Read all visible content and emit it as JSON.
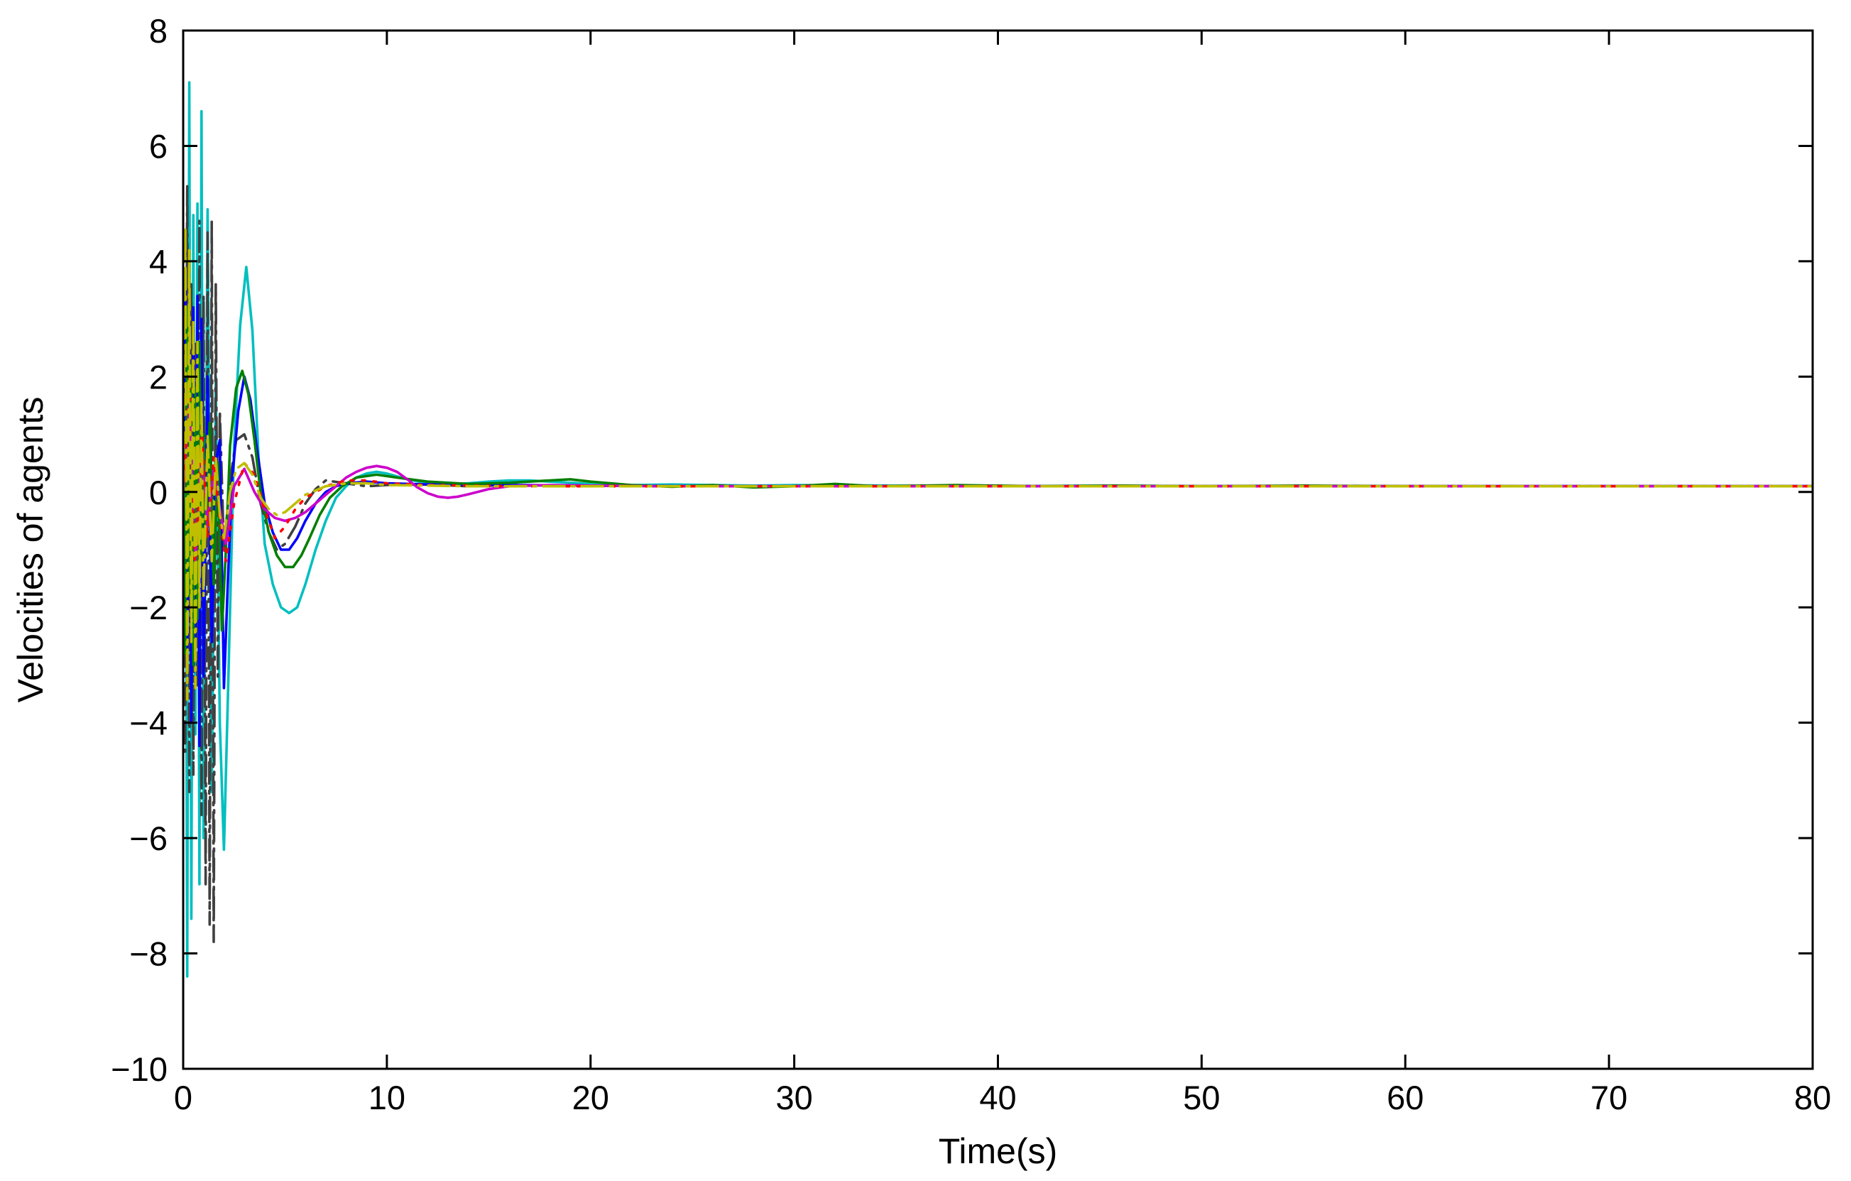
{
  "chart_data": {
    "type": "line",
    "title": "",
    "xlabel": "Time(s)",
    "ylabel": "Velocities of agents",
    "xlim": [
      0,
      80
    ],
    "ylim": [
      -10,
      8
    ],
    "xticks": [
      0,
      10,
      20,
      30,
      40,
      50,
      60,
      70,
      80
    ],
    "yticks": [
      -10,
      -8,
      -6,
      -4,
      -2,
      0,
      2,
      4,
      6,
      8
    ],
    "xtick_labels": [
      "0",
      "10",
      "20",
      "30",
      "40",
      "50",
      "60",
      "70",
      "80"
    ],
    "ytick_labels": [
      "−10",
      "−8",
      "−6",
      "−4",
      "−2",
      "0",
      "2",
      "4",
      "6",
      "8"
    ],
    "grid": false,
    "legend": "none",
    "series": [
      {
        "color": "#00bfbf",
        "style": "solid",
        "x": [
          0,
          0.1,
          0.2,
          0.3,
          0.4,
          0.5,
          0.6,
          0.7,
          0.8,
          0.9,
          1.0,
          1.2,
          1.4,
          1.6,
          1.8,
          2.0,
          2.2,
          2.5,
          2.8,
          3.1,
          3.4,
          3.7,
          4.0,
          4.4,
          4.8,
          5.2,
          5.6,
          6.0,
          6.5,
          7.0,
          7.5,
          8.0,
          8.5,
          9.0,
          9.5,
          10.0,
          11,
          12,
          13,
          14,
          15,
          16,
          17,
          18,
          19,
          20,
          22,
          24,
          26,
          28,
          30,
          35,
          40,
          45,
          50,
          55,
          60,
          65,
          70,
          75,
          80
        ],
        "y": [
          0.5,
          3.5,
          -8.4,
          7.1,
          -7.4,
          4.8,
          -4.2,
          5.0,
          -6.8,
          6.6,
          -6.0,
          4.9,
          -5.2,
          2.0,
          -4.0,
          -6.2,
          -3.5,
          0.8,
          2.9,
          3.9,
          2.8,
          0.6,
          -0.9,
          -1.6,
          -2.0,
          -2.1,
          -2.0,
          -1.6,
          -1.0,
          -0.5,
          -0.1,
          0.1,
          0.25,
          0.32,
          0.35,
          0.32,
          0.22,
          0.15,
          0.13,
          0.15,
          0.18,
          0.2,
          0.2,
          0.18,
          0.16,
          0.14,
          0.12,
          0.13,
          0.12,
          0.11,
          0.12,
          0.11,
          0.1,
          0.11,
          0.1,
          0.1,
          0.1,
          0.1,
          0.1,
          0.1,
          0.1
        ]
      },
      {
        "color": "#404040",
        "style": "dashdot",
        "x": [
          0,
          0.1,
          0.2,
          0.3,
          0.4,
          0.5,
          0.6,
          0.7,
          0.8,
          0.9,
          1.0,
          1.1,
          1.2,
          1.3,
          1.4,
          1.5,
          1.6,
          1.7,
          1.8,
          2.0,
          2.3,
          2.6,
          3.0,
          3.4,
          3.8,
          4.2,
          4.6,
          5.0,
          5.5,
          6.0,
          6.5,
          7.0,
          8.0,
          9.0,
          10,
          12,
          14,
          16,
          20,
          25,
          30,
          35,
          40,
          50,
          60,
          70,
          80
        ],
        "y": [
          0.0,
          -4.5,
          5.3,
          -5.2,
          3.6,
          -4.9,
          2.6,
          -3.4,
          4.7,
          -5.6,
          3.4,
          -6.8,
          4.5,
          -7.5,
          4.7,
          -7.8,
          3.6,
          -3.2,
          1.4,
          -1.0,
          0.2,
          0.9,
          1.0,
          0.6,
          -0.2,
          -0.7,
          -1.0,
          -0.9,
          -0.6,
          -0.2,
          0.05,
          0.2,
          0.15,
          0.1,
          0.12,
          0.13,
          0.1,
          0.12,
          0.11,
          0.1,
          0.1,
          0.1,
          0.1,
          0.1,
          0.1,
          0.1,
          0.1
        ]
      },
      {
        "color": "#0000ff",
        "style": "solid",
        "x": [
          0,
          0.1,
          0.2,
          0.3,
          0.4,
          0.5,
          0.6,
          0.7,
          0.8,
          0.9,
          1.0,
          1.2,
          1.4,
          1.6,
          1.8,
          2.0,
          2.2,
          2.4,
          2.7,
          3.0,
          3.3,
          3.6,
          4.0,
          4.4,
          4.8,
          5.2,
          5.6,
          6.0,
          6.5,
          7.0,
          7.5,
          8.0,
          9.0,
          10,
          12,
          14,
          16,
          20,
          25,
          30,
          40,
          50,
          60,
          70,
          80
        ],
        "y": [
          0.0,
          3.8,
          -3.0,
          2.4,
          -4.0,
          3.2,
          -2.8,
          3.4,
          -4.4,
          3.0,
          -3.2,
          2.0,
          -2.6,
          0.5,
          0.9,
          -3.4,
          -1.5,
          0.2,
          1.4,
          2.0,
          1.6,
          0.8,
          -0.2,
          -0.7,
          -1.0,
          -1.0,
          -0.8,
          -0.5,
          -0.2,
          0.0,
          0.1,
          0.15,
          0.18,
          0.15,
          0.13,
          0.12,
          0.12,
          0.11,
          0.1,
          0.1,
          0.1,
          0.1,
          0.1,
          0.1,
          0.1
        ]
      },
      {
        "color": "#007f00",
        "style": "solid",
        "x": [
          0,
          0.1,
          0.2,
          0.3,
          0.4,
          0.5,
          0.6,
          0.7,
          0.8,
          0.9,
          1.0,
          1.1,
          1.3,
          1.5,
          1.7,
          1.9,
          2.1,
          2.3,
          2.6,
          2.9,
          3.2,
          3.5,
          3.8,
          4.2,
          4.6,
          5.0,
          5.4,
          5.8,
          6.2,
          6.7,
          7.2,
          7.8,
          8.5,
          9.5,
          10.5,
          12,
          14,
          16,
          18,
          19,
          20,
          22,
          24,
          26,
          28,
          30,
          32,
          34,
          38,
          42,
          46,
          50,
          55,
          60,
          65,
          70,
          75,
          80
        ],
        "y": [
          0.0,
          -2.8,
          3.2,
          -1.8,
          2.2,
          -3.0,
          1.8,
          -2.2,
          2.6,
          -1.2,
          1.0,
          -0.8,
          1.2,
          -1.6,
          0.5,
          -2.4,
          -1.0,
          0.8,
          1.8,
          2.1,
          1.7,
          0.9,
          0.0,
          -0.7,
          -1.1,
          -1.3,
          -1.3,
          -1.1,
          -0.8,
          -0.4,
          -0.1,
          0.1,
          0.25,
          0.3,
          0.25,
          0.18,
          0.14,
          0.16,
          0.2,
          0.22,
          0.18,
          0.12,
          0.09,
          0.12,
          0.08,
          0.1,
          0.14,
          0.1,
          0.12,
          0.1,
          0.11,
          0.1,
          0.11,
          0.1,
          0.1,
          0.1,
          0.1,
          0.1
        ]
      },
      {
        "color": "#cc00cc",
        "style": "solid",
        "x": [
          0,
          0.3,
          0.6,
          0.9,
          1.2,
          1.5,
          1.8,
          2.1,
          2.5,
          3.0,
          3.5,
          4.0,
          4.5,
          5.0,
          5.5,
          6.0,
          6.5,
          7.0,
          7.5,
          8.0,
          8.5,
          9.0,
          9.5,
          10.0,
          10.5,
          11.0,
          11.5,
          12.0,
          12.5,
          13.0,
          13.5,
          14.0,
          15,
          16,
          18,
          20,
          24,
          28,
          32,
          40,
          50,
          60,
          70,
          80
        ],
        "y": [
          0.0,
          1.5,
          -1.2,
          0.8,
          -0.6,
          0.4,
          -0.3,
          -0.9,
          0.1,
          0.4,
          0.0,
          -0.3,
          -0.45,
          -0.5,
          -0.45,
          -0.35,
          -0.2,
          -0.05,
          0.1,
          0.25,
          0.35,
          0.42,
          0.45,
          0.42,
          0.35,
          0.22,
          0.08,
          -0.02,
          -0.08,
          -0.1,
          -0.08,
          -0.04,
          0.05,
          0.1,
          0.12,
          0.11,
          0.1,
          0.1,
          0.1,
          0.1,
          0.1,
          0.1,
          0.1,
          0.1
        ]
      },
      {
        "color": "#ff0000",
        "style": "dotted",
        "x": [
          0,
          0.3,
          0.6,
          0.9,
          1.2,
          1.5,
          1.8,
          2.1,
          2.5,
          3.0,
          3.5,
          4.0,
          4.5,
          5.0,
          5.5,
          6.0,
          7.0,
          8.0,
          9.0,
          10,
          12,
          14,
          16,
          20,
          25,
          30,
          40,
          50,
          60,
          70,
          80
        ],
        "y": [
          0.0,
          2.0,
          -1.6,
          1.2,
          -0.8,
          0.6,
          -0.5,
          -1.2,
          -0.2,
          0.5,
          0.3,
          -0.3,
          -0.8,
          -0.6,
          -0.3,
          -0.1,
          0.1,
          0.2,
          0.2,
          0.15,
          0.12,
          0.11,
          0.1,
          0.1,
          0.1,
          0.1,
          0.1,
          0.1,
          0.1,
          0.1,
          0.1
        ]
      },
      {
        "color": "#bfbf00",
        "style": "dashdot",
        "x": [
          0,
          0.1,
          0.2,
          0.3,
          0.4,
          0.5,
          0.6,
          0.7,
          0.8,
          0.9,
          1.0,
          1.2,
          1.4,
          1.6,
          1.8,
          2.0,
          2.3,
          2.6,
          3.0,
          3.4,
          3.8,
          4.2,
          4.6,
          5.0,
          5.5,
          6.0,
          7.0,
          8.0,
          9.0,
          10,
          12,
          14,
          20,
          30,
          40,
          50,
          60,
          70,
          80
        ],
        "y": [
          0.0,
          4.6,
          -3.6,
          4.2,
          -2.6,
          3.0,
          -3.4,
          2.6,
          -2.0,
          1.6,
          -1.8,
          1.0,
          -1.2,
          0.6,
          -0.4,
          -0.8,
          0.0,
          0.4,
          0.5,
          0.3,
          -0.1,
          -0.3,
          -0.4,
          -0.35,
          -0.2,
          -0.05,
          0.1,
          0.15,
          0.15,
          0.12,
          0.11,
          0.1,
          0.1,
          0.1,
          0.1,
          0.1,
          0.1,
          0.1,
          0.1
        ]
      }
    ]
  }
}
